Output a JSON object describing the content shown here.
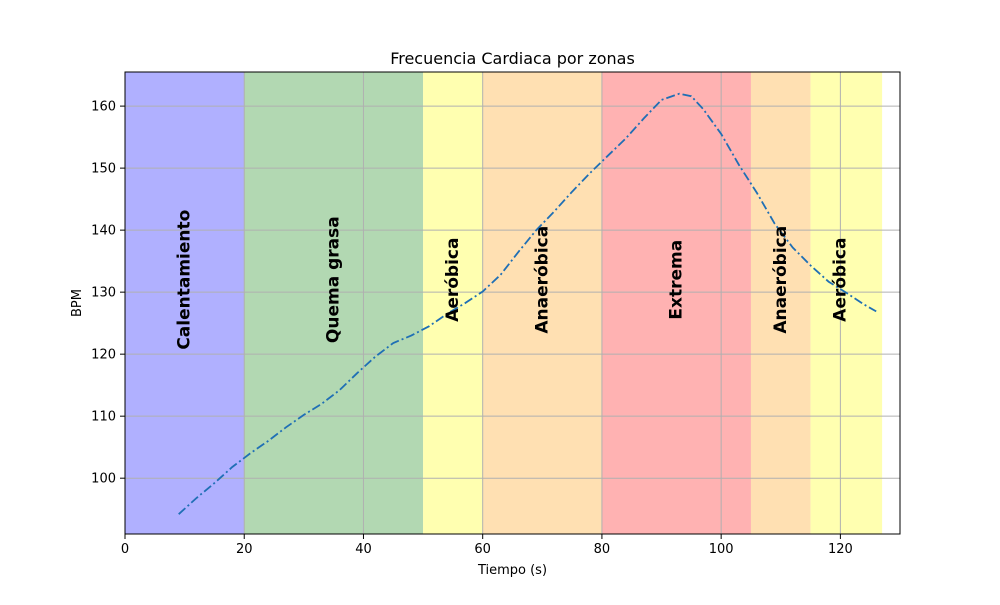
{
  "chart_data": {
    "type": "line",
    "title": "Frecuencia Cardiaca por zonas",
    "xlabel": "Tiempo (s)",
    "ylabel": "BPM",
    "xlim": [
      0,
      130
    ],
    "ylim": [
      91,
      165.5
    ],
    "xticks": [
      0,
      20,
      40,
      60,
      80,
      100,
      120
    ],
    "yticks": [
      100,
      110,
      120,
      130,
      140,
      150,
      160
    ],
    "grid": true,
    "zones": [
      {
        "label": "Calentamiento",
        "start": 0,
        "end": 20,
        "color": "#b0b0ff",
        "label_x": 10,
        "label_y": 132
      },
      {
        "label": "Quema grasa",
        "start": 20,
        "end": 50,
        "color": "#b2d8b2",
        "label_x": 35,
        "label_y": 132
      },
      {
        "label": "Aeróbica",
        "start": 50,
        "end": 60,
        "color": "#ffffb0",
        "label_x": 55,
        "label_y": 132
      },
      {
        "label": "Anaeróbica",
        "start": 60,
        "end": 80,
        "color": "#ffe0b2",
        "label_x": 70,
        "label_y": 132
      },
      {
        "label": "Extrema",
        "start": 80,
        "end": 105,
        "color": "#ffb2b2",
        "label_x": 92.5,
        "label_y": 132
      },
      {
        "label": "Anaeróbica",
        "start": 105,
        "end": 115,
        "color": "#ffe0b2",
        "label_x": 110,
        "label_y": 132
      },
      {
        "label": "Aeróbica",
        "start": 115,
        "end": 127,
        "color": "#ffffb0",
        "label_x": 120,
        "label_y": 132
      }
    ],
    "series": [
      {
        "color": "#1f6fb5",
        "x": [
          9,
          12,
          15,
          18,
          21,
          24,
          27,
          30,
          33,
          36,
          39,
          42,
          45,
          48,
          51,
          54,
          57,
          60,
          63,
          66,
          69,
          72,
          75,
          78,
          81,
          84,
          87,
          90,
          93,
          95,
          97,
          100,
          103,
          106,
          109,
          112,
          115,
          118,
          121,
          124,
          126
        ],
        "y": [
          94.2,
          96.8,
          99.2,
          101.8,
          104.0,
          106.0,
          108.2,
          110.2,
          112.0,
          114.2,
          117.0,
          119.6,
          121.8,
          123.0,
          124.5,
          126.5,
          128.2,
          130.1,
          132.8,
          136.5,
          140.0,
          143.0,
          146.2,
          149.2,
          152.0,
          154.8,
          158.0,
          161.0,
          162.0,
          161.6,
          159.5,
          155.5,
          150.5,
          146.0,
          141.0,
          137.2,
          134.3,
          131.7,
          129.9,
          128.0,
          126.9
        ]
      }
    ]
  }
}
